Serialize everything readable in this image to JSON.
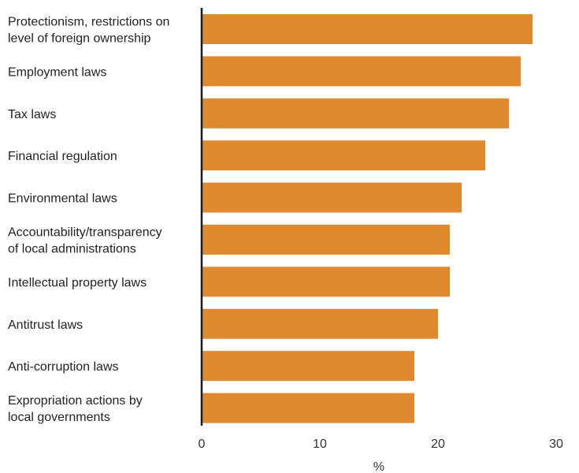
{
  "chart_data": {
    "type": "bar",
    "orientation": "horizontal",
    "categories": [
      [
        "Protectionism, restrictions on",
        "level of foreign ownership"
      ],
      [
        "Employment laws"
      ],
      [
        "Tax laws"
      ],
      [
        "Financial regulation"
      ],
      [
        "Environmental laws"
      ],
      [
        "Accountability/transparency",
        "of local administrations"
      ],
      [
        "Intellectual property laws"
      ],
      [
        "Antitrust laws"
      ],
      [
        "Anti-corruption laws"
      ],
      [
        "Expropriation actions by",
        "local governments"
      ]
    ],
    "values": [
      28,
      27,
      26,
      24,
      22,
      21,
      21,
      20,
      18,
      18
    ],
    "xlabel": "%",
    "ylabel": "",
    "xlim": [
      0,
      30
    ],
    "xticks": [
      "0",
      "10",
      "20",
      "30"
    ],
    "grid": false,
    "bar_color": "#E08A30",
    "axis_color": "#1a1a1a"
  }
}
